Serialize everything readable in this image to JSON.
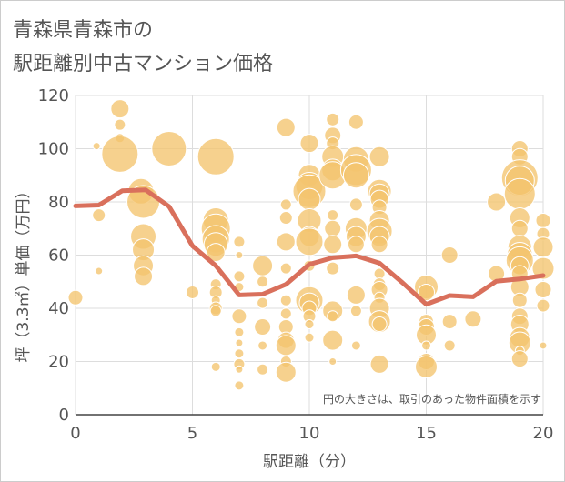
{
  "chart_data": {
    "type": "scatter",
    "title_lines": [
      "青森県青森市の",
      "駅距離別中古マンション価格"
    ],
    "xlabel": "駅距離（分）",
    "ylabel": "坪（3.3㎡）単価（万円）",
    "xlim": [
      0,
      20
    ],
    "ylim": [
      0,
      120
    ],
    "xticks": [
      0,
      5,
      10,
      15,
      20
    ],
    "yticks": [
      0,
      20,
      40,
      60,
      80,
      100,
      120
    ],
    "grid": true,
    "note": "円の大きさは、取引のあった物件面積を示す",
    "colors": {
      "bubble_fill": "#f4c46e",
      "bubble_stroke": "#ffffff",
      "line": "#d9705c",
      "grid": "#dddddd",
      "frame": "#cccccc"
    },
    "series": [
      {
        "kind": "bubble",
        "points": [
          [
            0,
            44,
            8
          ],
          [
            0.9,
            101,
            4
          ],
          [
            1,
            75,
            7
          ],
          [
            1,
            54,
            4
          ],
          [
            1.9,
            115,
            10
          ],
          [
            1.9,
            109,
            6
          ],
          [
            1.9,
            104,
            5
          ],
          [
            1.9,
            98,
            20
          ],
          [
            2.8,
            84,
            14
          ],
          [
            2.9,
            80,
            18
          ],
          [
            2.9,
            67,
            14
          ],
          [
            2.9,
            62,
            12
          ],
          [
            2.9,
            56,
            11
          ],
          [
            2.9,
            52,
            10
          ],
          [
            4,
            100,
            19
          ],
          [
            5,
            46,
            7
          ],
          [
            6,
            97,
            20
          ],
          [
            6,
            73,
            14
          ],
          [
            6,
            70,
            16
          ],
          [
            6,
            66,
            15
          ],
          [
            6,
            64,
            13
          ],
          [
            6,
            61,
            10
          ],
          [
            6,
            49,
            6
          ],
          [
            6,
            46,
            7
          ],
          [
            6,
            43,
            5
          ],
          [
            6,
            40,
            7
          ],
          [
            6,
            39,
            6
          ],
          [
            6,
            18,
            5
          ],
          [
            7,
            65,
            6
          ],
          [
            7,
            60,
            4
          ],
          [
            7,
            52,
            6
          ],
          [
            7,
            48,
            5
          ],
          [
            7,
            37,
            8
          ],
          [
            7,
            31,
            5
          ],
          [
            7,
            27,
            4
          ],
          [
            7,
            23,
            5
          ],
          [
            7,
            19,
            6
          ],
          [
            7,
            17,
            4
          ],
          [
            7,
            11,
            5
          ],
          [
            8,
            56,
            11
          ],
          [
            8,
            50,
            6
          ],
          [
            8,
            42,
            6
          ],
          [
            8,
            33,
            9
          ],
          [
            8,
            26,
            5
          ],
          [
            8,
            17,
            6
          ],
          [
            9,
            108,
            10
          ],
          [
            9,
            79,
            6
          ],
          [
            9,
            74,
            7
          ],
          [
            9,
            65,
            10
          ],
          [
            9,
            55,
            6
          ],
          [
            9,
            43,
            6
          ],
          [
            9,
            38,
            6
          ],
          [
            9,
            33,
            8
          ],
          [
            9,
            28,
            9
          ],
          [
            9,
            26,
            11
          ],
          [
            9,
            20,
            6
          ],
          [
            9,
            16,
            11
          ],
          [
            10,
            102,
            10
          ],
          [
            10,
            90,
            12
          ],
          [
            10,
            86,
            15
          ],
          [
            10,
            84,
            18
          ],
          [
            10,
            81,
            12
          ],
          [
            10,
            73,
            13
          ],
          [
            10,
            67,
            11
          ],
          [
            10,
            65,
            15
          ],
          [
            10,
            56,
            6
          ],
          [
            10,
            43,
            15
          ],
          [
            10,
            42,
            11
          ],
          [
            10,
            40,
            8
          ],
          [
            10,
            37,
            7
          ],
          [
            10,
            34,
            5
          ],
          [
            10,
            29,
            5
          ],
          [
            11,
            111,
            7
          ],
          [
            11,
            105,
            9
          ],
          [
            11,
            102,
            7
          ],
          [
            11,
            97,
            12
          ],
          [
            11,
            92,
            12
          ],
          [
            11,
            90,
            15
          ],
          [
            11,
            75,
            6
          ],
          [
            11,
            70,
            9
          ],
          [
            11,
            64,
            10
          ],
          [
            11,
            55,
            7
          ],
          [
            11,
            39,
            11
          ],
          [
            11,
            37,
            6
          ],
          [
            11,
            28,
            11
          ],
          [
            11,
            20,
            4
          ],
          [
            12,
            110,
            8
          ],
          [
            12,
            96,
            14
          ],
          [
            12,
            92,
            17
          ],
          [
            12,
            90,
            14
          ],
          [
            12,
            79,
            7
          ],
          [
            12,
            70,
            12
          ],
          [
            12,
            67,
            11
          ],
          [
            12,
            64,
            9
          ],
          [
            12,
            45,
            10
          ],
          [
            12,
            39,
            6
          ],
          [
            12,
            26,
            5
          ],
          [
            13,
            97,
            11
          ],
          [
            13,
            84,
            13
          ],
          [
            13,
            83,
            11
          ],
          [
            13,
            81,
            10
          ],
          [
            13,
            78,
            8
          ],
          [
            13,
            73,
            11
          ],
          [
            13,
            69,
            14
          ],
          [
            13,
            67,
            11
          ],
          [
            13,
            64,
            9
          ],
          [
            13,
            53,
            6
          ],
          [
            13,
            49,
            7
          ],
          [
            13,
            47,
            9
          ],
          [
            13,
            44,
            6
          ],
          [
            13,
            40,
            11
          ],
          [
            13,
            35,
            12
          ],
          [
            13,
            34,
            8
          ],
          [
            13,
            19,
            10
          ],
          [
            15,
            48,
            13
          ],
          [
            15,
            46,
            9
          ],
          [
            15,
            35,
            8
          ],
          [
            15,
            33,
            9
          ],
          [
            15,
            30,
            11
          ],
          [
            15,
            26,
            5
          ],
          [
            15,
            20,
            9
          ],
          [
            15,
            18,
            12
          ],
          [
            16,
            60,
            9
          ],
          [
            16,
            35,
            8
          ],
          [
            16,
            26,
            6
          ],
          [
            17,
            36,
            9
          ],
          [
            18,
            80,
            10
          ],
          [
            18,
            53,
            9
          ],
          [
            19,
            100,
            9
          ],
          [
            19,
            97,
            9
          ],
          [
            19,
            89,
            20
          ],
          [
            19,
            88,
            16
          ],
          [
            19,
            83,
            17
          ],
          [
            19,
            74,
            11
          ],
          [
            19,
            70,
            9
          ],
          [
            19,
            63,
            13
          ],
          [
            19,
            60,
            14
          ],
          [
            19,
            58,
            15
          ],
          [
            19,
            56,
            10
          ],
          [
            19,
            53,
            9
          ],
          [
            19,
            48,
            10
          ],
          [
            19,
            43,
            8
          ],
          [
            19,
            37,
            9
          ],
          [
            19,
            34,
            10
          ],
          [
            19,
            29,
            11
          ],
          [
            19,
            27,
            12
          ],
          [
            19,
            24,
            5
          ],
          [
            19,
            21,
            9
          ],
          [
            20,
            73,
            8
          ],
          [
            20,
            68,
            7
          ],
          [
            20,
            63,
            11
          ],
          [
            20,
            55,
            12
          ],
          [
            20,
            47,
            9
          ],
          [
            20,
            41,
            7
          ],
          [
            20,
            26,
            4
          ]
        ]
      },
      {
        "kind": "line",
        "x": [
          0,
          1,
          2,
          3,
          4,
          5,
          6,
          7,
          8,
          9,
          10,
          11,
          12,
          13,
          14,
          15,
          16,
          17,
          18,
          19,
          20
        ],
        "y": [
          78.5,
          78.8,
          84.2,
          84.5,
          78.3,
          63.5,
          56,
          45,
          45.3,
          49,
          56.5,
          59,
          59.7,
          57,
          49.5,
          41.5,
          44.8,
          44.3,
          50.2,
          51,
          52.3
        ]
      }
    ]
  }
}
